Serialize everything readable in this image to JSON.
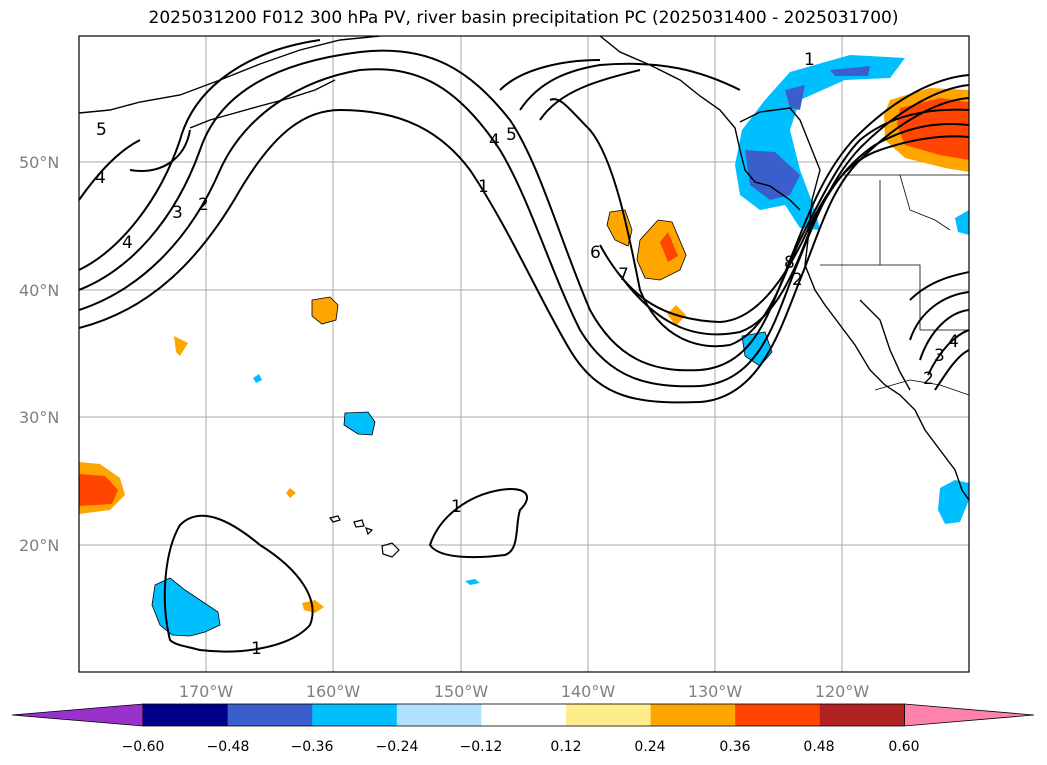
{
  "title": "2025031200 F012 300 hPa PV, river basin precipitation PC (2025031400 - 2025031700)",
  "lat_labels": [
    "50°N",
    "40°N",
    "30°N",
    "20°N"
  ],
  "lon_labels": [
    "170°W",
    "160°W",
    "150°W",
    "140°W",
    "130°W",
    "120°W"
  ],
  "colorbar": {
    "ticks": [
      "−0.60",
      "−0.48",
      "−0.36",
      "−0.24",
      "−0.12",
      "0.12",
      "0.24",
      "0.36",
      "0.48",
      "0.60"
    ],
    "colors": [
      "#9932cc",
      "#00008b",
      "#3a5fcd",
      "#00bfff",
      "#b0e2ff",
      "#ffffff",
      "#ffec8b",
      "#ffa500",
      "#ff4500",
      "#b22222",
      "#ff82ab"
    ]
  },
  "contour_labels": [
    "5",
    "4",
    "4",
    "3",
    "2",
    "5",
    "4",
    "1",
    "6",
    "7",
    "8",
    "2",
    "1",
    "1",
    "1",
    "2",
    "3",
    "4"
  ]
}
